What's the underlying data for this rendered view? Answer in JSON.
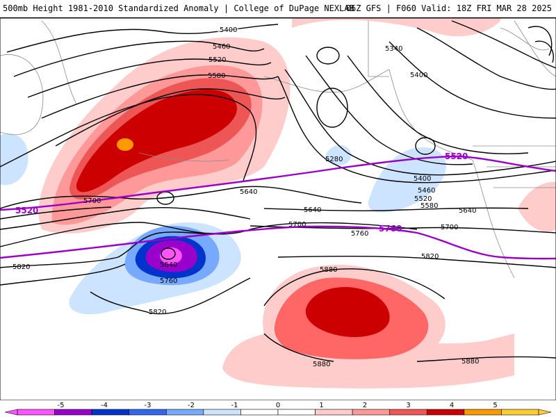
{
  "header": {
    "title": "500mb Height 1981-2010 Standardized Anomaly | College of DuPage NEXLAB",
    "run_info": "06Z GFS | F060 Valid: 18Z FRI MAR 28 2025"
  },
  "map": {
    "black_contour_labels": [
      "5400",
      "5460",
      "5520",
      "5580",
      "5340",
      "5400",
      "5280",
      "5400",
      "5460",
      "5520",
      "5580",
      "5640",
      "5640",
      "5700",
      "5700",
      "5640",
      "5760",
      "5820",
      "5700",
      "5820",
      "5640",
      "5760",
      "5820",
      "5880",
      "5880",
      "5880"
    ],
    "purple_contour_labels": [
      "5520",
      "5520",
      "5760"
    ]
  },
  "legend": {
    "colors": [
      "#ff55ff",
      "#9900cc",
      "#0033cc",
      "#3366ee",
      "#77aaff",
      "#cce4ff",
      "#ffffff",
      "#ffffff",
      "#ffcccc",
      "#ff9999",
      "#ee5555",
      "#cc0000",
      "#ff9900",
      "#ffcc33"
    ],
    "tick_labels": [
      "-5",
      "-4",
      "-3",
      "-2",
      "-1",
      "0",
      "1",
      "2",
      "3",
      "4",
      "5"
    ]
  }
}
